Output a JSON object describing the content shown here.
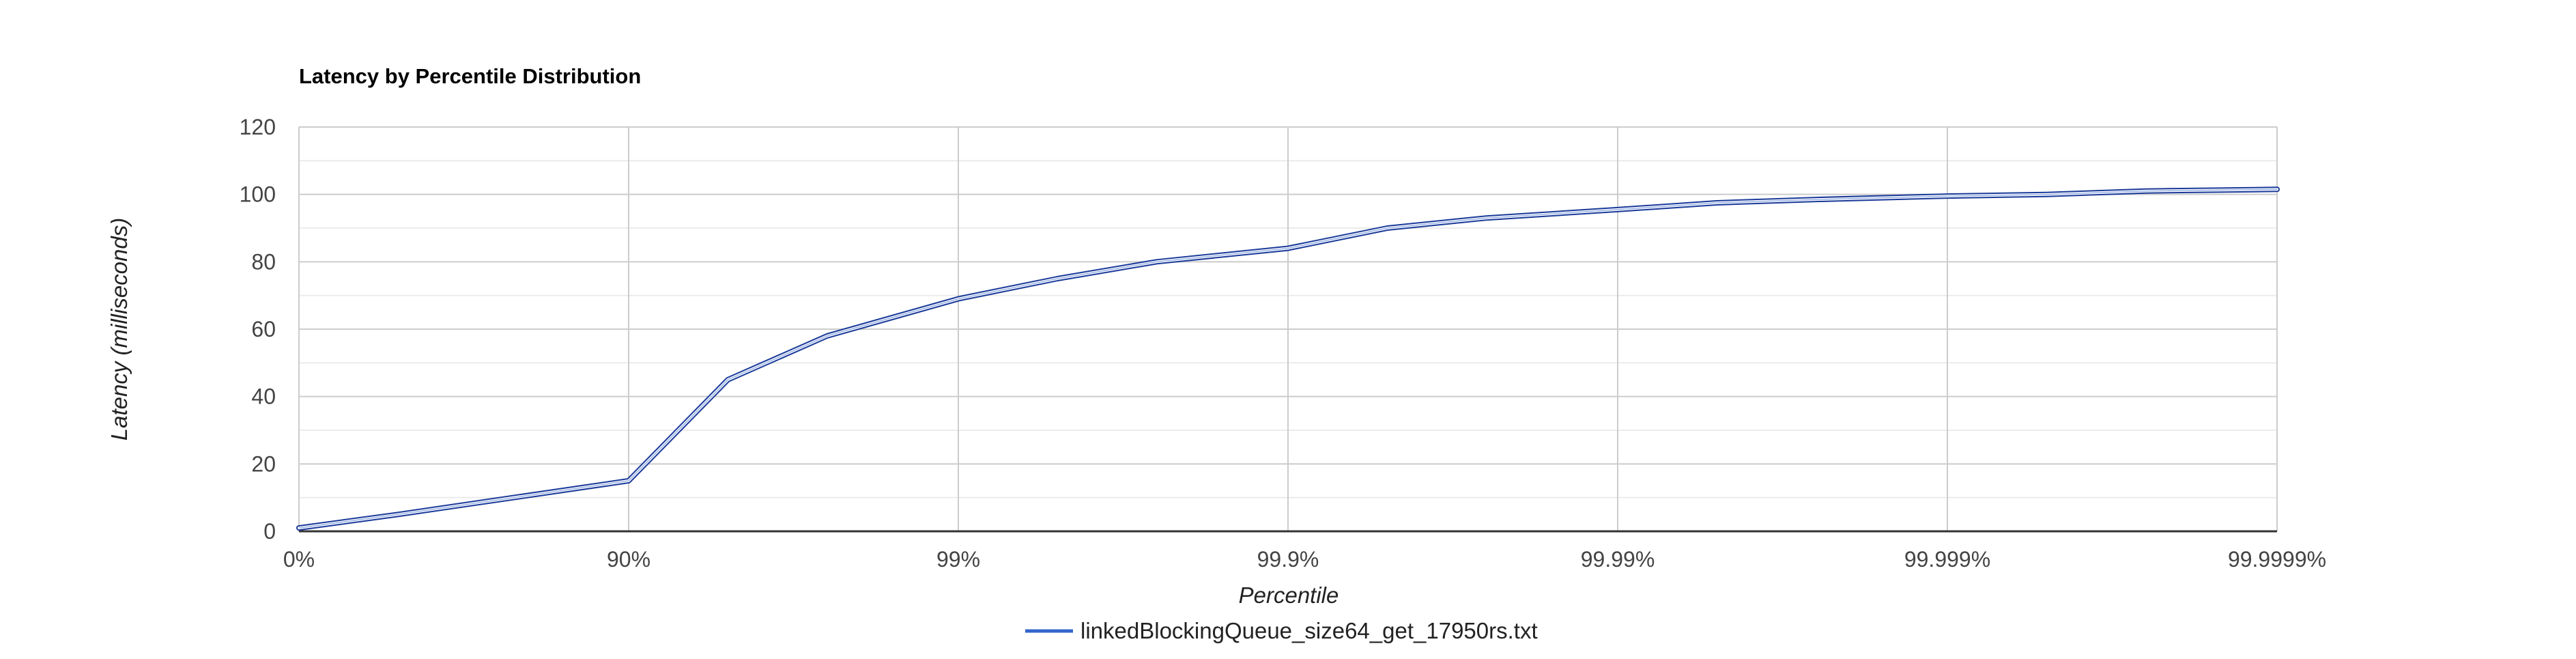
{
  "chart_data": {
    "type": "line",
    "title": "Latency by Percentile Distribution",
    "xlabel": "Percentile",
    "ylabel": "Latency (milliseconds)",
    "x_scale": "log-percentile",
    "x_ticks": [
      "0%",
      "90%",
      "99%",
      "99.9%",
      "99.99%",
      "99.999%",
      "99.9999%"
    ],
    "y_ticks": [
      "0",
      "20",
      "40",
      "60",
      "80",
      "100",
      "120"
    ],
    "ylim": [
      0,
      120
    ],
    "grid": true,
    "legend_position": "bottom",
    "colors": {
      "series_line": "#3366cc",
      "series_outline": "#1a3a99",
      "grid_major": "#cccccc",
      "grid_minor": "#ebebeb",
      "baseline": "#333333"
    },
    "series": [
      {
        "name": "linkedBlockingQueue_size64_get_17950rs.txt",
        "x_percentile": [
          0,
          50,
          90,
          95,
          97.5,
          99,
          99.5,
          99.75,
          99.9,
          99.95,
          99.975,
          99.99,
          99.995,
          99.9975,
          99.999,
          99.9995,
          99.99975,
          99.9999
        ],
        "y": [
          1,
          5,
          15,
          45,
          58,
          69,
          75,
          80,
          84,
          90,
          93,
          95.5,
          97.5,
          98.5,
          99.5,
          100,
          101,
          101.5
        ]
      }
    ]
  }
}
